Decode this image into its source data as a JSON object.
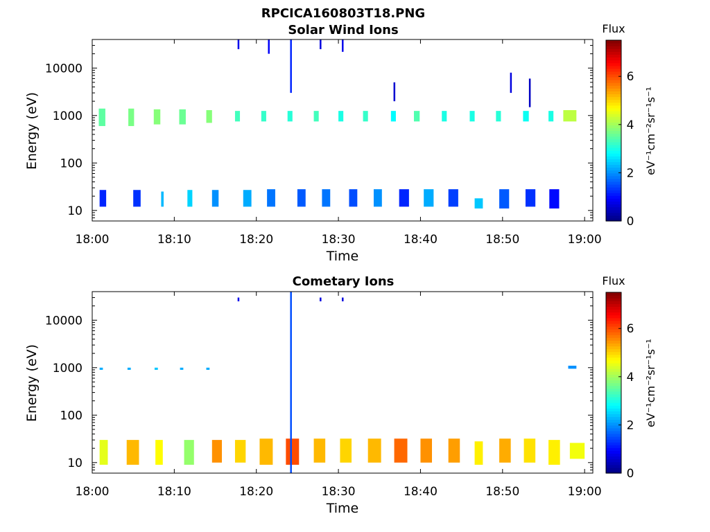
{
  "figure_title": "RPCICA160803T18.PNG",
  "chart_data": [
    {
      "type": "heatmap",
      "title": "Solar Wind Ions",
      "xlabel": "Time",
      "ylabel": "Energy (eV)",
      "xlim": [
        "18:00",
        "19:01"
      ],
      "ylim": [
        6,
        40000
      ],
      "yscale": "log",
      "xticks": [
        "18:00",
        "18:10",
        "18:20",
        "18:30",
        "18:40",
        "18:50",
        "19:00"
      ],
      "yticks": [
        {
          "value": 10,
          "label": "10"
        },
        {
          "value": 100,
          "label": "100"
        },
        {
          "value": 1000,
          "label": "1000"
        },
        {
          "value": 10000,
          "label": "10000"
        }
      ],
      "colorbar": {
        "label": "Flux",
        "unit": "eV⁻¹cm⁻²sr⁻¹s⁻¹",
        "range": [
          0,
          7.5
        ],
        "ticks": [
          0,
          2,
          4,
          6
        ],
        "colormap": "jet"
      },
      "blocks": [
        {
          "t": 0.8,
          "dt": 0.8,
          "e0": 600,
          "e1": 1400,
          "v": 3.5
        },
        {
          "t": 4.4,
          "dt": 0.7,
          "e0": 600,
          "e1": 1400,
          "v": 3.7
        },
        {
          "t": 7.5,
          "dt": 0.8,
          "e0": 650,
          "e1": 1350,
          "v": 3.8
        },
        {
          "t": 10.6,
          "dt": 0.8,
          "e0": 650,
          "e1": 1350,
          "v": 3.6
        },
        {
          "t": 13.9,
          "dt": 0.7,
          "e0": 700,
          "e1": 1300,
          "v": 3.8
        },
        {
          "t": 17.4,
          "dt": 0.6,
          "e0": 750,
          "e1": 1250,
          "v": 3.3
        },
        {
          "t": 20.6,
          "dt": 0.6,
          "e0": 750,
          "e1": 1250,
          "v": 3.2
        },
        {
          "t": 23.8,
          "dt": 0.6,
          "e0": 750,
          "e1": 1250,
          "v": 3.1
        },
        {
          "t": 27.0,
          "dt": 0.6,
          "e0": 750,
          "e1": 1250,
          "v": 3.3
        },
        {
          "t": 30.0,
          "dt": 0.6,
          "e0": 750,
          "e1": 1250,
          "v": 3.0
        },
        {
          "t": 33.0,
          "dt": 0.6,
          "e0": 750,
          "e1": 1250,
          "v": 3.2
        },
        {
          "t": 36.4,
          "dt": 0.6,
          "e0": 750,
          "e1": 1250,
          "v": 2.8
        },
        {
          "t": 39.2,
          "dt": 0.7,
          "e0": 750,
          "e1": 1250,
          "v": 3.4
        },
        {
          "t": 42.6,
          "dt": 0.6,
          "e0": 750,
          "e1": 1250,
          "v": 3.0
        },
        {
          "t": 46.0,
          "dt": 0.6,
          "e0": 750,
          "e1": 1250,
          "v": 3.0
        },
        {
          "t": 49.2,
          "dt": 0.6,
          "e0": 750,
          "e1": 1250,
          "v": 3.1
        },
        {
          "t": 52.5,
          "dt": 0.7,
          "e0": 750,
          "e1": 1250,
          "v": 2.9
        },
        {
          "t": 55.6,
          "dt": 0.6,
          "e0": 750,
          "e1": 1250,
          "v": 3.0
        },
        {
          "t": 57.4,
          "dt": 1.6,
          "e0": 750,
          "e1": 1300,
          "v": 4.2
        },
        {
          "t": 0.9,
          "dt": 0.8,
          "e0": 12,
          "e1": 27,
          "v": 1.2
        },
        {
          "t": 5.0,
          "dt": 0.9,
          "e0": 12,
          "e1": 27,
          "v": 1.3
        },
        {
          "t": 8.4,
          "dt": 0.3,
          "e0": 12,
          "e1": 25,
          "v": 2.3
        },
        {
          "t": 11.6,
          "dt": 0.6,
          "e0": 12,
          "e1": 27,
          "v": 2.5
        },
        {
          "t": 14.6,
          "dt": 0.8,
          "e0": 12,
          "e1": 27,
          "v": 2.0
        },
        {
          "t": 18.4,
          "dt": 1.0,
          "e0": 12,
          "e1": 27,
          "v": 2.2
        },
        {
          "t": 21.3,
          "dt": 1.0,
          "e0": 12,
          "e1": 28,
          "v": 1.8
        },
        {
          "t": 25.0,
          "dt": 1.0,
          "e0": 12,
          "e1": 28,
          "v": 1.6
        },
        {
          "t": 28.0,
          "dt": 1.0,
          "e0": 12,
          "e1": 28,
          "v": 1.8
        },
        {
          "t": 31.3,
          "dt": 1.0,
          "e0": 12,
          "e1": 28,
          "v": 1.5
        },
        {
          "t": 34.3,
          "dt": 1.0,
          "e0": 12,
          "e1": 28,
          "v": 2.0
        },
        {
          "t": 37.4,
          "dt": 1.2,
          "e0": 12,
          "e1": 28,
          "v": 1.2
        },
        {
          "t": 40.4,
          "dt": 1.2,
          "e0": 12,
          "e1": 28,
          "v": 2.2
        },
        {
          "t": 43.4,
          "dt": 1.2,
          "e0": 12,
          "e1": 28,
          "v": 1.4
        },
        {
          "t": 46.6,
          "dt": 1.0,
          "e0": 11,
          "e1": 18,
          "v": 2.4
        },
        {
          "t": 49.6,
          "dt": 1.2,
          "e0": 11,
          "e1": 28,
          "v": 1.6
        },
        {
          "t": 52.8,
          "dt": 1.2,
          "e0": 12,
          "e1": 28,
          "v": 1.3
        },
        {
          "t": 55.7,
          "dt": 1.2,
          "e0": 11,
          "e1": 28,
          "v": 1.0
        }
      ],
      "streaks": [
        {
          "t": 24.2,
          "e0": 3000,
          "e1": 40000,
          "v": 1.2
        },
        {
          "t": 17.8,
          "e0": 25000,
          "e1": 40000,
          "v": 0.8
        },
        {
          "t": 30.5,
          "e0": 22000,
          "e1": 40000,
          "v": 0.8
        },
        {
          "t": 36.8,
          "e0": 2000,
          "e1": 5000,
          "v": 0.6
        },
        {
          "t": 53.3,
          "e0": 1500,
          "e1": 6000,
          "v": 0.5
        },
        {
          "t": 51.0,
          "e0": 3000,
          "e1": 8000,
          "v": 0.7
        },
        {
          "t": 21.5,
          "e0": 20000,
          "e1": 40000,
          "v": 0.9
        },
        {
          "t": 27.8,
          "e0": 25000,
          "e1": 40000,
          "v": 0.7
        }
      ]
    },
    {
      "type": "heatmap",
      "title": "Cometary Ions",
      "xlabel": "Time",
      "ylabel": "Energy (eV)",
      "xlim": [
        "18:00",
        "19:01"
      ],
      "ylim": [
        6,
        40000
      ],
      "yscale": "log",
      "xticks": [
        "18:00",
        "18:10",
        "18:20",
        "18:30",
        "18:40",
        "18:50",
        "19:00"
      ],
      "yticks": [
        {
          "value": 10,
          "label": "10"
        },
        {
          "value": 100,
          "label": "100"
        },
        {
          "value": 1000,
          "label": "1000"
        },
        {
          "value": 10000,
          "label": "10000"
        }
      ],
      "colorbar": {
        "label": "Flux",
        "unit": "eV⁻¹cm⁻²sr⁻¹s⁻¹",
        "range": [
          0,
          7.5
        ],
        "ticks": [
          0,
          2,
          4,
          6
        ],
        "colormap": "jet"
      },
      "blocks": [
        {
          "t": 0.9,
          "dt": 1.0,
          "e0": 9,
          "e1": 30,
          "v": 4.5
        },
        {
          "t": 4.2,
          "dt": 1.5,
          "e0": 9,
          "e1": 30,
          "v": 5.2
        },
        {
          "t": 7.7,
          "dt": 0.9,
          "e0": 9,
          "e1": 30,
          "v": 4.7
        },
        {
          "t": 11.2,
          "dt": 1.2,
          "e0": 9,
          "e1": 30,
          "v": 3.9
        },
        {
          "t": 14.6,
          "dt": 1.2,
          "e0": 10,
          "e1": 30,
          "v": 5.5
        },
        {
          "t": 17.4,
          "dt": 1.3,
          "e0": 10,
          "e1": 30,
          "v": 5.0
        },
        {
          "t": 20.4,
          "dt": 1.6,
          "e0": 9,
          "e1": 32,
          "v": 5.2
        },
        {
          "t": 23.6,
          "dt": 1.6,
          "e0": 9,
          "e1": 32,
          "v": 6.0
        },
        {
          "t": 27.0,
          "dt": 1.4,
          "e0": 10,
          "e1": 32,
          "v": 5.2
        },
        {
          "t": 30.2,
          "dt": 1.4,
          "e0": 10,
          "e1": 32,
          "v": 5.0
        },
        {
          "t": 33.6,
          "dt": 1.6,
          "e0": 10,
          "e1": 32,
          "v": 5.2
        },
        {
          "t": 36.8,
          "dt": 1.6,
          "e0": 10,
          "e1": 32,
          "v": 5.8
        },
        {
          "t": 40.0,
          "dt": 1.4,
          "e0": 10,
          "e1": 32,
          "v": 5.5
        },
        {
          "t": 43.4,
          "dt": 1.4,
          "e0": 10,
          "e1": 32,
          "v": 5.4
        },
        {
          "t": 46.6,
          "dt": 1.0,
          "e0": 9,
          "e1": 28,
          "v": 4.8
        },
        {
          "t": 49.6,
          "dt": 1.4,
          "e0": 10,
          "e1": 32,
          "v": 5.3
        },
        {
          "t": 52.6,
          "dt": 1.4,
          "e0": 10,
          "e1": 32,
          "v": 4.9
        },
        {
          "t": 55.6,
          "dt": 1.4,
          "e0": 9,
          "e1": 30,
          "v": 4.8
        },
        {
          "t": 58.2,
          "dt": 1.8,
          "e0": 12,
          "e1": 26,
          "v": 4.6
        },
        {
          "t": 0.9,
          "dt": 0.4,
          "e0": 900,
          "e1": 1000,
          "v": 2.2
        },
        {
          "t": 4.3,
          "dt": 0.4,
          "e0": 900,
          "e1": 1000,
          "v": 2.2
        },
        {
          "t": 7.6,
          "dt": 0.4,
          "e0": 900,
          "e1": 1000,
          "v": 2.4
        },
        {
          "t": 10.7,
          "dt": 0.4,
          "e0": 900,
          "e1": 1000,
          "v": 2.2
        },
        {
          "t": 13.9,
          "dt": 0.4,
          "e0": 900,
          "e1": 1000,
          "v": 2.2
        },
        {
          "t": 58.0,
          "dt": 1.0,
          "e0": 950,
          "e1": 1100,
          "v": 2.0
        }
      ],
      "streaks": [
        {
          "t": 24.2,
          "e0": 6,
          "e1": 40000,
          "v": 1.5
        },
        {
          "t": 17.8,
          "e0": 25000,
          "e1": 30000,
          "v": 0.8
        },
        {
          "t": 27.8,
          "e0": 25000,
          "e1": 30000,
          "v": 0.7
        },
        {
          "t": 30.5,
          "e0": 25000,
          "e1": 30000,
          "v": 0.7
        }
      ]
    }
  ]
}
